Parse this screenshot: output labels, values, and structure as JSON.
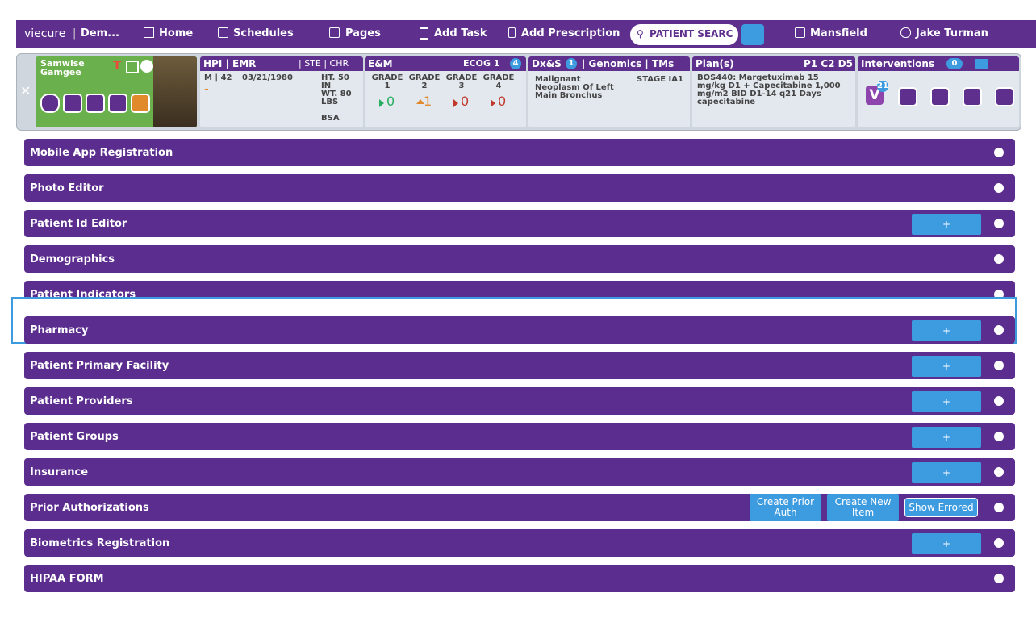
{
  "nav": {
    "brand": "viecure",
    "practice": "Dem...",
    "items": [
      "Home",
      "Schedules",
      "Pages",
      "Add Task",
      "Add Prescription"
    ],
    "search": "PATIENT SEARC",
    "location": "Mansfield",
    "user": "Jake Turman"
  },
  "patient": {
    "name": "Samwise Gamgee",
    "badge": "T",
    "hpi": {
      "title": "HPI | EMR",
      "tabs": "| STE | CHR",
      "sex_age": "M | 42",
      "dob": "03/21/1980",
      "height": "HT. 50 IN",
      "weight": "WT. 80 LBS",
      "bsa": "BSA",
      "dash": "-"
    },
    "em": {
      "title": "E&M",
      "ecog": "ECOG 1",
      "badge": "4",
      "grades": [
        {
          "label": "GRADE 1",
          "value": "0"
        },
        {
          "label": "GRADE 2",
          "value": "1"
        },
        {
          "label": "GRADE 3",
          "value": "0"
        },
        {
          "label": "GRADE 4",
          "value": "0"
        }
      ]
    },
    "dx": {
      "title": "Dx&S",
      "badge": "1",
      "tabs": "| Genomics | TMs",
      "diagnosis": "Malignant Neoplasm Of Left Main Bronchus",
      "stage": "STAGE IA1"
    },
    "plan": {
      "title": "Plan(s)",
      "cycle": "P1 C2 D5",
      "text": "BOS440: Margetuximab 15 mg/kg D1 + Capecitabine 1,000 mg/m2 BID D1-14 q21 Days capecitabine"
    },
    "interventions": {
      "title": "Interventions",
      "cart": "0",
      "count": "21",
      "icon": "V"
    }
  },
  "sections": [
    {
      "title": "Mobile App Registration",
      "buttons": []
    },
    {
      "title": "Photo Editor",
      "buttons": []
    },
    {
      "title": "Patient Id Editor",
      "buttons": [
        "+"
      ]
    },
    {
      "title": "Demographics",
      "buttons": []
    },
    {
      "title": "Patient Indicators",
      "buttons": []
    },
    {
      "title": "Pharmacy",
      "buttons": [
        "+"
      ]
    },
    {
      "title": "Patient Primary Facility",
      "buttons": [
        "+"
      ]
    },
    {
      "title": "Patient Providers",
      "buttons": [
        "+"
      ]
    },
    {
      "title": "Patient Groups",
      "buttons": [
        "+"
      ]
    },
    {
      "title": "Insurance",
      "buttons": [
        "+"
      ]
    },
    {
      "title": "Prior Authorizations",
      "buttons": [
        "Create Prior Auth",
        "Create New Item",
        "Show Errored"
      ]
    },
    {
      "title": "Biometrics Registration",
      "buttons": [
        "+"
      ]
    },
    {
      "title": "HIPAA FORM",
      "buttons": []
    }
  ]
}
